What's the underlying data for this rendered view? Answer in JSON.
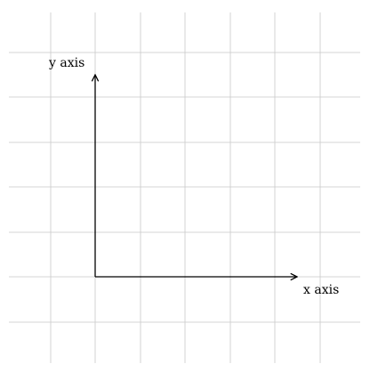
{
  "diagram": {
    "x_axis_label": "x axis",
    "y_axis_label": "y axis"
  },
  "colors": {
    "grid": "#c8c8c8",
    "axis": "#000000",
    "background": "#ffffff"
  },
  "grid": {
    "visible": true
  }
}
